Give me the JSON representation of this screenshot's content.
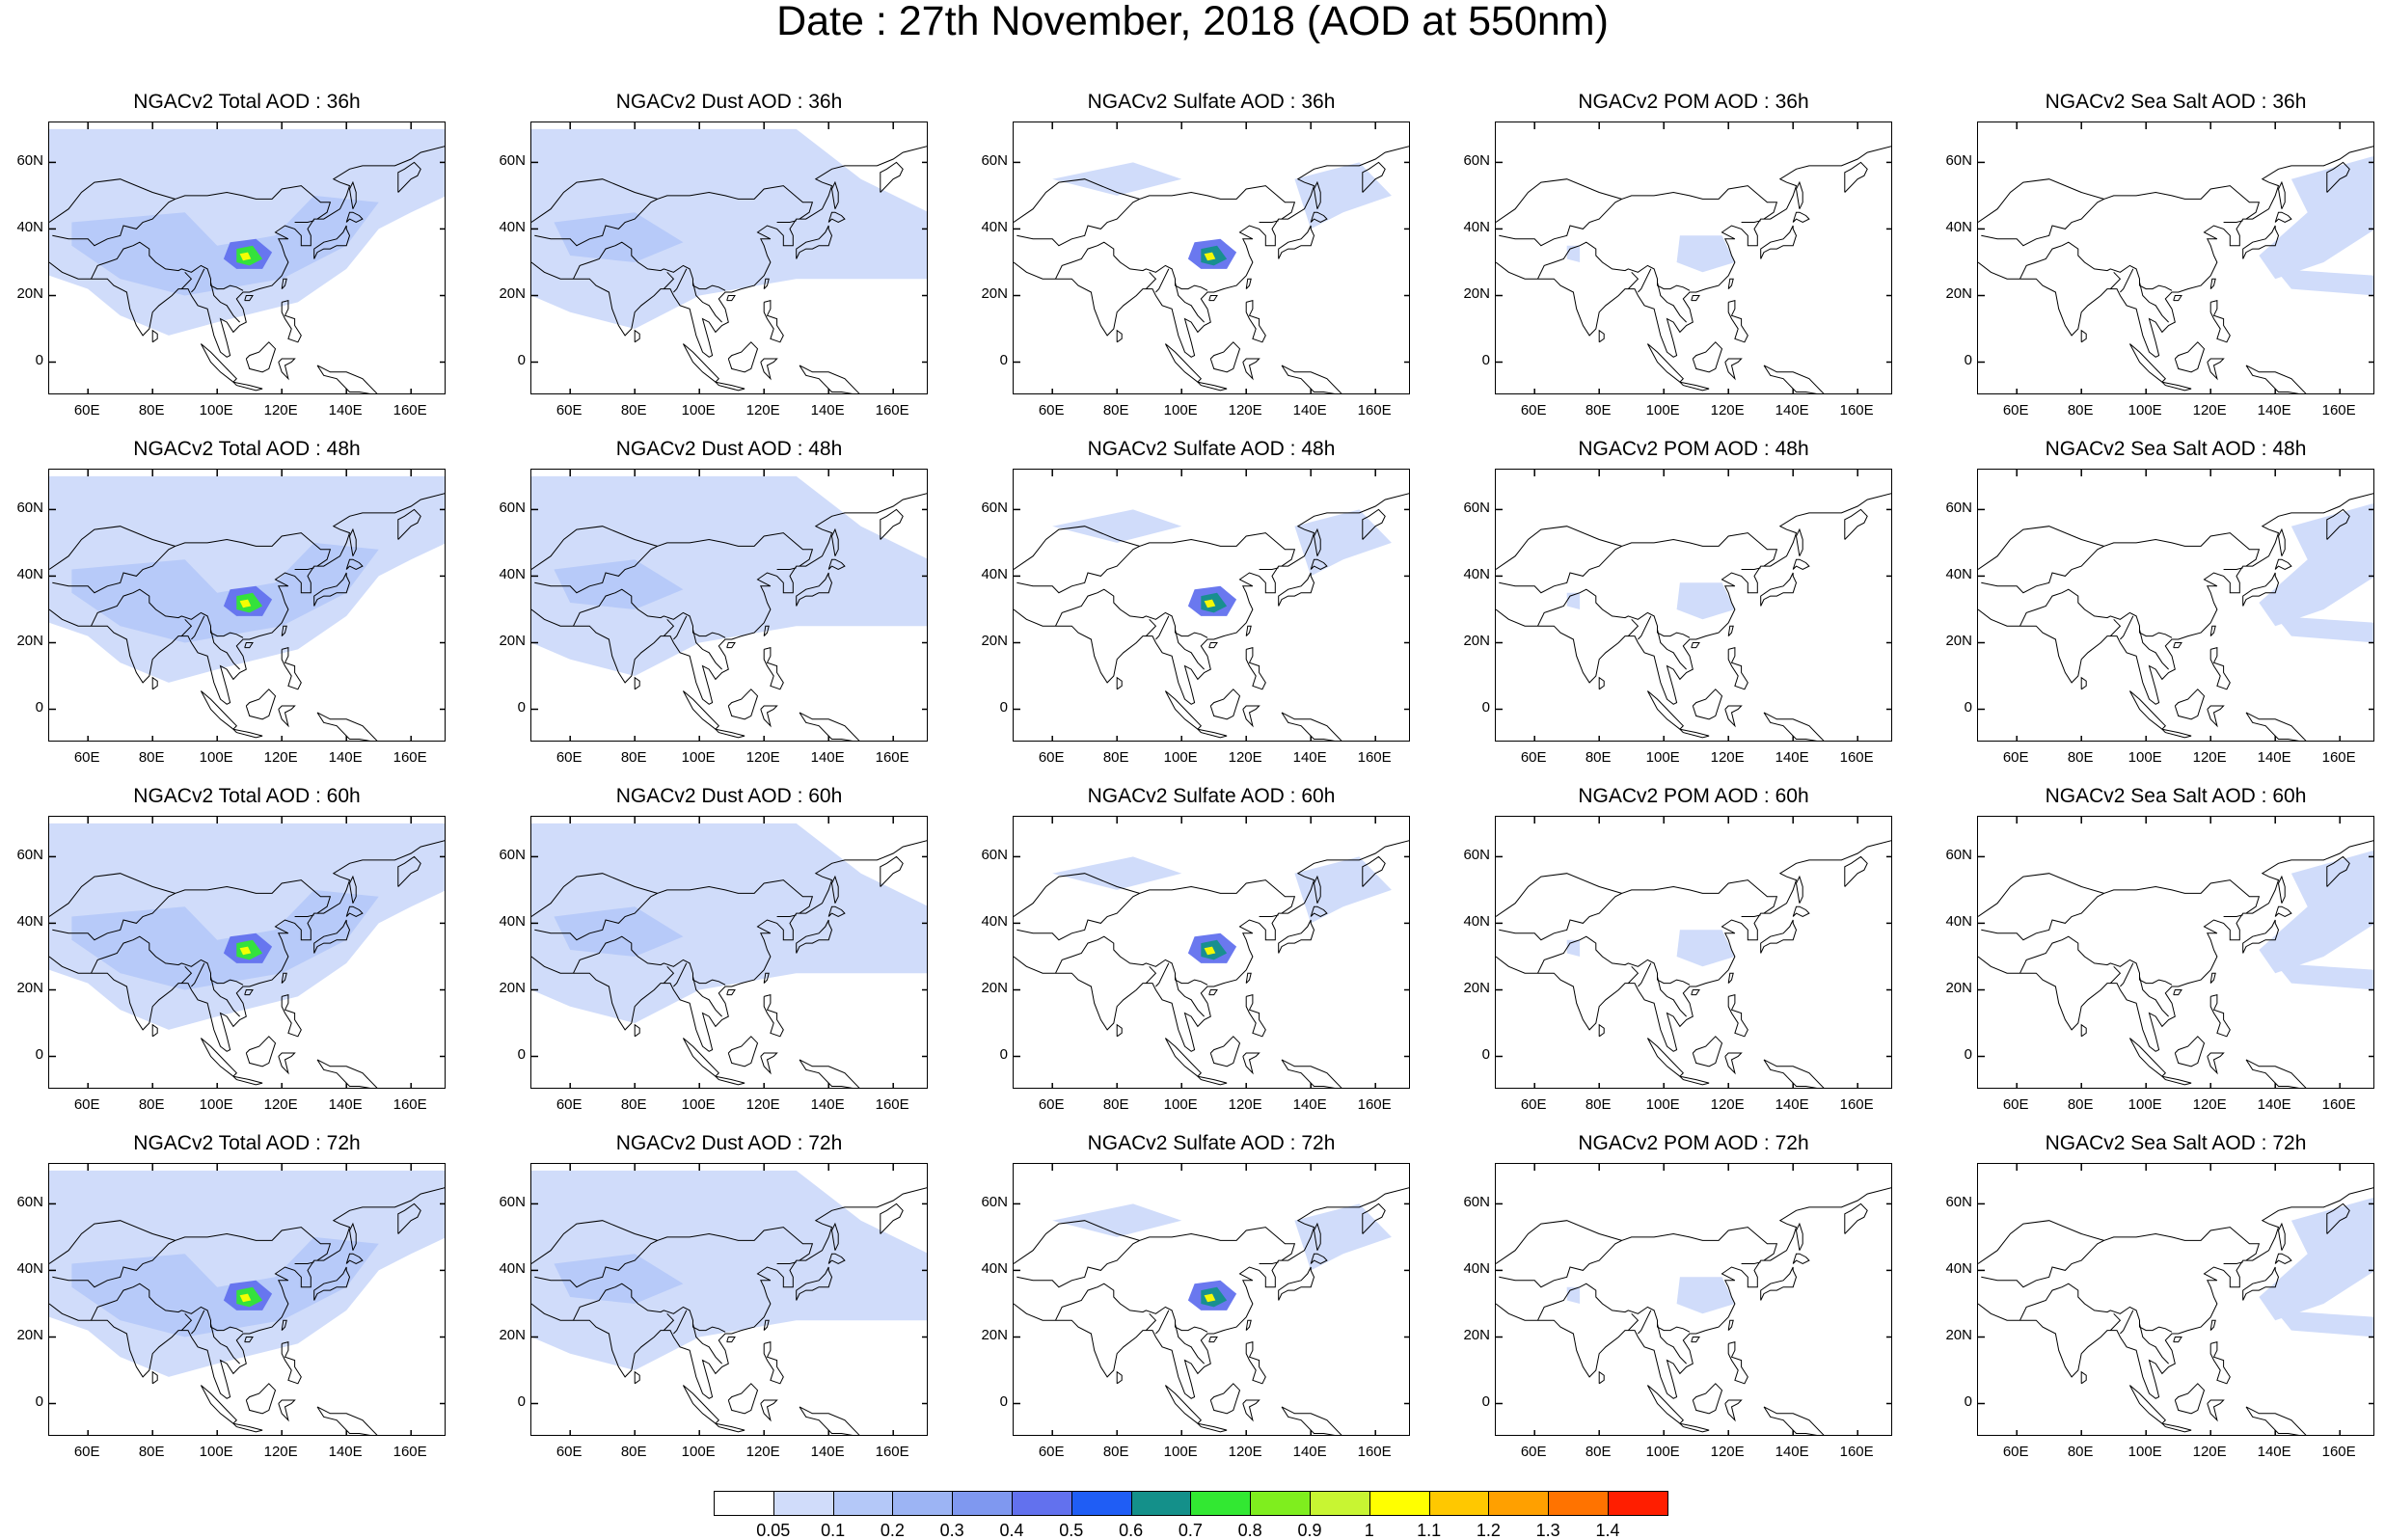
{
  "title": "Date : 27th November, 2018 (AOD at 550nm)",
  "panels": [
    [
      "NGACv2 Total AOD : 36h",
      "NGACv2 Dust AOD : 36h",
      "NGACv2 Sulfate AOD : 36h",
      "NGACv2 POM AOD : 36h",
      "NGACv2 Sea Salt AOD : 36h"
    ],
    [
      "NGACv2 Total AOD : 48h",
      "NGACv2 Dust AOD : 48h",
      "NGACv2 Sulfate AOD : 48h",
      "NGACv2 POM AOD : 48h",
      "NGACv2 Sea Salt AOD : 48h"
    ],
    [
      "NGACv2 Total AOD : 60h",
      "NGACv2 Dust AOD : 60h",
      "NGACv2 Sulfate AOD : 60h",
      "NGACv2 POM AOD : 60h",
      "NGACv2 Sea Salt AOD : 60h"
    ],
    [
      "NGACv2 Total AOD : 72h",
      "NGACv2 Dust AOD : 72h",
      "NGACv2 Sulfate AOD : 72h",
      "NGACv2 POM AOD : 72h",
      "NGACv2 Sea Salt  AOD : 72h"
    ]
  ],
  "lat_ticks": [
    {
      "label": "60N",
      "value": 60
    },
    {
      "label": "40N",
      "value": 40
    },
    {
      "label": "20N",
      "value": 20
    },
    {
      "label": "0",
      "value": 0
    }
  ],
  "lon_ticks": [
    {
      "label": "60E",
      "value": 60
    },
    {
      "label": "80E",
      "value": 80
    },
    {
      "label": "100E",
      "value": 100
    },
    {
      "label": "120E",
      "value": 120
    },
    {
      "label": "140E",
      "value": 140
    },
    {
      "label": "160E",
      "value": 160
    }
  ],
  "colorbar": {
    "labels": [
      "0.05",
      "0.1",
      "0.2",
      "0.3",
      "0.4",
      "0.5",
      "0.6",
      "0.7",
      "0.8",
      "0.9",
      "1",
      "1.1",
      "1.2",
      "1.3",
      "1.4"
    ],
    "colors": [
      "#ffffff",
      "#d0dcfa",
      "#b4c8f8",
      "#9cb4f4",
      "#7f98f0",
      "#6271ee",
      "#1f5df5",
      "#14908a",
      "#32e832",
      "#7fee1e",
      "#c8f532",
      "#ffff00",
      "#ffc800",
      "#ffa000",
      "#ff7300",
      "#ff1e00"
    ]
  },
  "land_color": "#d0dcfa"
}
